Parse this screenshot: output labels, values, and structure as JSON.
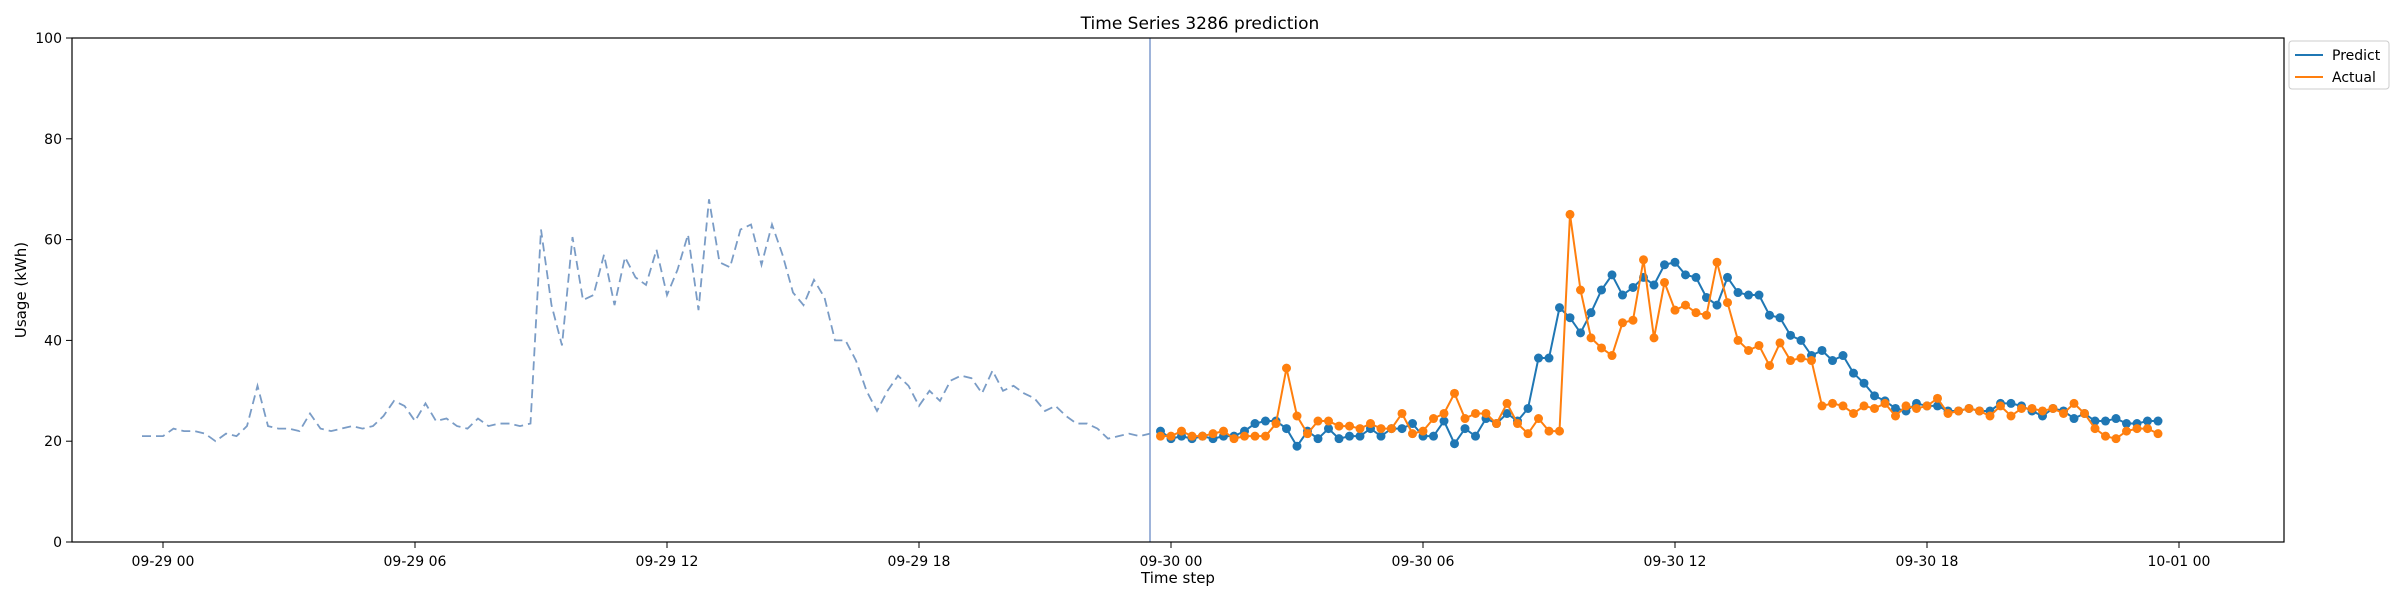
{
  "chart_data": {
    "type": "line",
    "title": "Time Series 3286 prediction",
    "xlabel": "Time step",
    "ylabel": "Usage (kWh)",
    "ylim": [
      0,
      100
    ],
    "xlim": [
      "09-28 21:50",
      "10-01 02:30"
    ],
    "x_ticks": [
      "09-29 00",
      "09-29 06",
      "09-29 12",
      "09-29 18",
      "09-30 00",
      "09-30 06",
      "09-30 12",
      "09-30 18",
      "10-01 00"
    ],
    "y_ticks": [
      0,
      20,
      40,
      60,
      80,
      100
    ],
    "forecast_start": "09-29 23:30",
    "legend": {
      "placement": "top-right"
    },
    "grid": false,
    "colors": {
      "predict": "#1f77b4",
      "actual": "#ff7f0e",
      "history": "#7a9cc6",
      "divider": "#6b8cc7"
    },
    "history": {
      "style": "dashed",
      "start": "09-28 23:30",
      "interval_minutes": 15,
      "values": [
        21,
        21,
        21,
        22.5,
        22,
        22,
        21.5,
        20,
        21.5,
        21,
        23,
        31,
        23,
        22.5,
        22.5,
        22,
        25.5,
        22.5,
        22,
        22.5,
        23,
        22.5,
        23,
        25,
        28,
        27,
        24,
        27.5,
        24,
        24.5,
        23,
        22.5,
        24.5,
        23,
        23.5,
        23.5,
        23,
        23.5,
        62,
        47,
        39,
        60.5,
        48,
        49,
        57,
        47,
        56.5,
        52.5,
        51,
        58,
        49,
        54,
        61,
        46,
        68,
        55.5,
        54.5,
        62,
        63,
        55,
        63,
        57,
        49.5,
        47,
        52,
        48.5,
        40,
        40,
        36,
        30,
        26,
        30,
        33,
        31,
        27,
        30,
        28,
        32,
        33,
        32.5,
        29.5,
        34,
        30,
        31,
        29.5,
        28.5,
        26,
        27,
        25,
        23.5,
        23.5,
        22.5,
        20.5,
        21,
        21.5,
        21,
        21.5
      ]
    },
    "series": [
      {
        "name": "Predict",
        "start": "09-29 23:45",
        "interval_minutes": 15,
        "values": [
          22,
          20.5,
          21,
          20.5,
          21,
          20.5,
          21,
          21,
          22,
          23.5,
          24,
          24,
          22.5,
          19,
          22,
          20.5,
          22.5,
          20.5,
          21,
          21,
          22.5,
          21,
          22.5,
          22.5,
          23.5,
          21,
          21,
          24,
          19.5,
          22.5,
          21,
          24.5,
          23.5,
          25.5,
          24,
          26.5,
          36.5,
          36.5,
          46.5,
          44.5,
          41.5,
          45.5,
          50,
          53,
          49,
          50.5,
          52.5,
          51,
          55,
          55.5,
          53,
          52.5,
          48.5,
          47,
          52.5,
          49.5,
          49,
          49,
          45,
          44.5,
          41,
          40,
          37,
          38,
          36,
          37,
          33.5,
          31.5,
          29,
          28,
          26.5,
          26,
          27.5,
          27,
          27,
          26,
          26,
          26.5,
          26,
          26,
          27.5,
          27.5,
          27,
          26,
          25,
          26.5,
          26,
          24.5,
          25.5,
          24,
          24,
          24.5,
          23.5,
          23.5,
          24,
          24
        ]
      },
      {
        "name": "Actual",
        "start": "09-29 23:45",
        "interval_minutes": 15,
        "values": [
          21,
          21,
          22,
          21,
          21,
          21.5,
          22,
          20.5,
          21,
          21,
          21,
          23.5,
          34.5,
          25,
          21.5,
          24,
          24,
          23,
          23,
          22.5,
          23.5,
          22.5,
          22.5,
          25.5,
          21.5,
          22,
          24.5,
          25.5,
          29.5,
          24.5,
          25.5,
          25.5,
          23.5,
          27.5,
          23.5,
          21.5,
          24.5,
          22,
          22,
          65,
          50,
          40.5,
          38.5,
          37,
          43.5,
          44,
          56,
          40.5,
          51.5,
          46,
          47,
          45.5,
          45,
          55.5,
          47.5,
          40,
          38,
          39,
          35,
          39.5,
          36,
          36.5,
          36,
          27,
          27.5,
          27,
          25.5,
          27,
          26.5,
          27.5,
          25,
          27,
          26.5,
          27,
          28.5,
          25.5,
          26,
          26.5,
          26,
          25,
          27,
          25,
          26.5,
          26.5,
          26,
          26.5,
          25.5,
          27.5,
          25.5,
          22.5,
          21,
          20.5,
          22,
          22.5,
          22.5,
          21.5
        ]
      }
    ]
  }
}
